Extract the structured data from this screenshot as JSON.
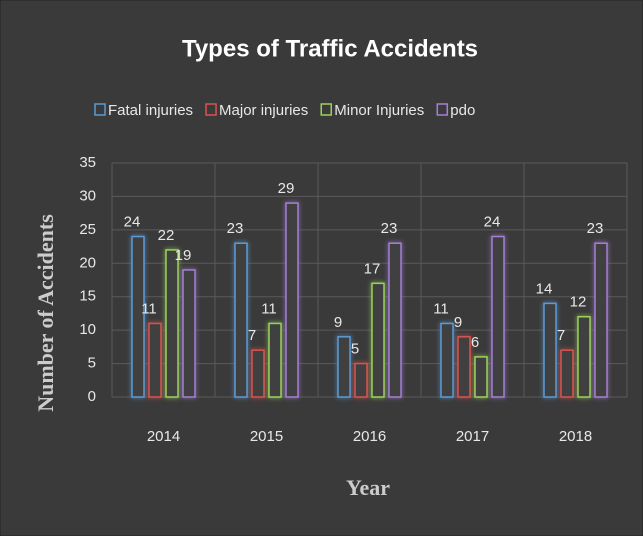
{
  "chart_data": {
    "type": "bar",
    "title": "Types of Traffic Accidents",
    "xlabel": "Year",
    "ylabel": "Number of Accidents",
    "categories": [
      "2014",
      "2015",
      "2016",
      "2017",
      "2018"
    ],
    "series": [
      {
        "name": "Fatal injuries",
        "color": "#5b9bd5",
        "values": [
          24,
          23,
          9,
          11,
          14
        ]
      },
      {
        "name": "Major injuries",
        "color": "#d9534f",
        "values": [
          11,
          7,
          5,
          9,
          7
        ]
      },
      {
        "name": "Minor Injuries",
        "color": "#9bd35a",
        "values": [
          22,
          11,
          17,
          6,
          12
        ]
      },
      {
        "name": "pdo",
        "color": "#a57fd6",
        "values": [
          19,
          29,
          23,
          24,
          23
        ]
      }
    ],
    "ylim": [
      0,
      35
    ],
    "yticks": [
      0,
      5,
      10,
      15,
      20,
      25,
      30,
      35
    ],
    "grid": true,
    "legend": "top"
  }
}
